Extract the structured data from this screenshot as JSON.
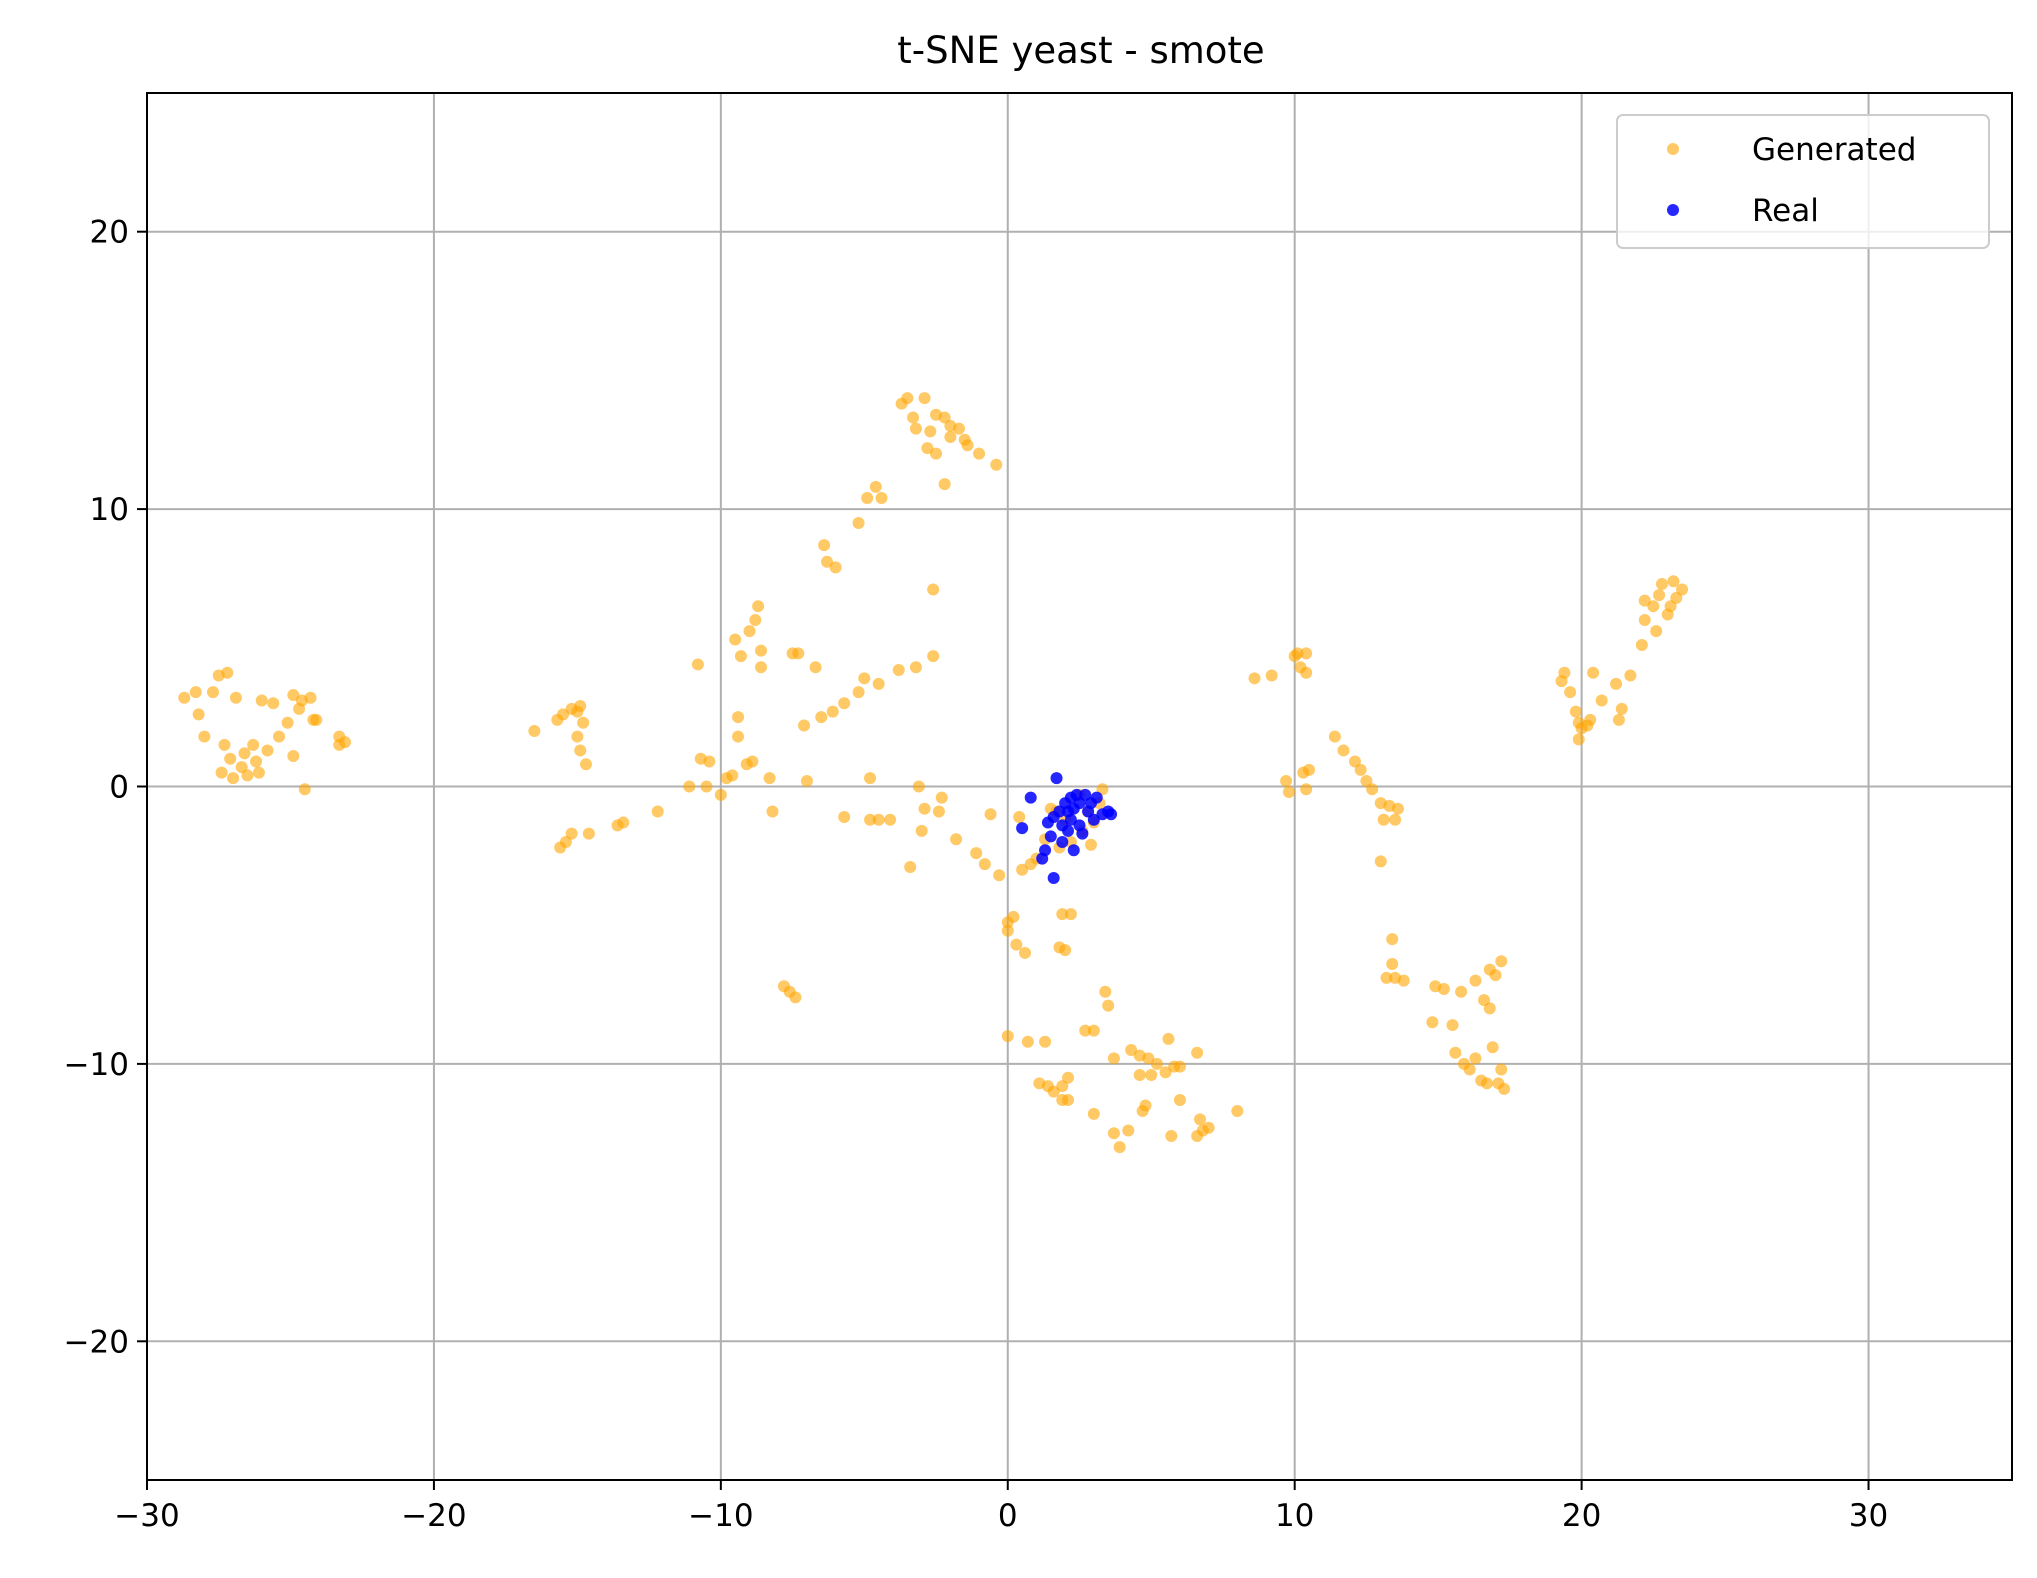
{
  "chart_data": {
    "type": "scatter",
    "title": "t-SNE yeast - smote",
    "xlabel": "",
    "ylabel": "",
    "xlim": [
      -30,
      35
    ],
    "ylim": [
      -25,
      25
    ],
    "xticks": [
      -30,
      -20,
      -10,
      0,
      10,
      20,
      30
    ],
    "yticks": [
      -20,
      -10,
      0,
      10,
      20
    ],
    "xtick_labels": [
      "−30",
      "−20",
      "−10",
      "0",
      "10",
      "20",
      "30"
    ],
    "ytick_labels": [
      "−20",
      "−10",
      "0",
      "10",
      "20"
    ],
    "grid": true,
    "legend_position": "top-right",
    "series": [
      {
        "name": "Generated",
        "color": "#FFA500",
        "alpha": 0.6,
        "points": [
          [
            -28.7,
            3.2
          ],
          [
            -28.3,
            3.4
          ],
          [
            -28.2,
            2.6
          ],
          [
            -28.0,
            1.8
          ],
          [
            -27.7,
            3.4
          ],
          [
            -27.5,
            4.0
          ],
          [
            -27.4,
            0.5
          ],
          [
            -27.3,
            1.5
          ],
          [
            -27.2,
            4.1
          ],
          [
            -27.1,
            1.0
          ],
          [
            -27.0,
            0.3
          ],
          [
            -26.9,
            3.2
          ],
          [
            -26.7,
            0.7
          ],
          [
            -26.6,
            1.2
          ],
          [
            -26.5,
            0.4
          ],
          [
            -26.3,
            1.5
          ],
          [
            -26.2,
            0.9
          ],
          [
            -26.1,
            0.5
          ],
          [
            -26.0,
            3.1
          ],
          [
            -25.8,
            1.3
          ],
          [
            -25.6,
            3.0
          ],
          [
            -25.4,
            1.8
          ],
          [
            -25.1,
            2.3
          ],
          [
            -24.9,
            1.1
          ],
          [
            -24.9,
            3.3
          ],
          [
            -24.7,
            2.8
          ],
          [
            -24.6,
            3.1
          ],
          [
            -24.5,
            -0.1
          ],
          [
            -24.3,
            3.2
          ],
          [
            -24.2,
            2.4
          ],
          [
            -24.1,
            2.4
          ],
          [
            -23.3,
            1.8
          ],
          [
            -23.3,
            1.5
          ],
          [
            -23.1,
            1.6
          ],
          [
            -16.5,
            2.0
          ],
          [
            -15.7,
            2.4
          ],
          [
            -15.6,
            -2.2
          ],
          [
            -15.5,
            2.6
          ],
          [
            -15.4,
            -2.0
          ],
          [
            -15.2,
            2.8
          ],
          [
            -15.2,
            -1.7
          ],
          [
            -15.0,
            2.7
          ],
          [
            -15.0,
            1.8
          ],
          [
            -14.9,
            2.9
          ],
          [
            -14.9,
            1.3
          ],
          [
            -14.8,
            2.3
          ],
          [
            -14.7,
            0.8
          ],
          [
            -14.6,
            -1.7
          ],
          [
            -13.6,
            -1.4
          ],
          [
            -13.4,
            -1.3
          ],
          [
            -12.2,
            -0.9
          ],
          [
            -11.1,
            0.0
          ],
          [
            -10.8,
            4.4
          ],
          [
            -10.7,
            1.0
          ],
          [
            -10.5,
            0.0
          ],
          [
            -10.4,
            0.9
          ],
          [
            -10.0,
            -0.3
          ],
          [
            -9.8,
            0.3
          ],
          [
            -9.6,
            0.4
          ],
          [
            -9.5,
            5.3
          ],
          [
            -9.4,
            2.5
          ],
          [
            -9.4,
            1.8
          ],
          [
            -9.3,
            4.7
          ],
          [
            -9.1,
            0.8
          ],
          [
            -9.0,
            5.6
          ],
          [
            -8.9,
            0.9
          ],
          [
            -8.8,
            6.0
          ],
          [
            -8.7,
            6.5
          ],
          [
            -8.6,
            4.9
          ],
          [
            -8.6,
            4.3
          ],
          [
            -8.3,
            0.3
          ],
          [
            -8.2,
            -0.9
          ],
          [
            -7.8,
            -7.2
          ],
          [
            -7.6,
            -7.4
          ],
          [
            -7.5,
            4.8
          ],
          [
            -7.4,
            -7.6
          ],
          [
            -7.3,
            4.8
          ],
          [
            -7.1,
            2.2
          ],
          [
            -7.0,
            0.2
          ],
          [
            -6.7,
            4.3
          ],
          [
            -6.5,
            2.5
          ],
          [
            -6.4,
            8.7
          ],
          [
            -6.3,
            8.1
          ],
          [
            -6.1,
            2.7
          ],
          [
            -6.0,
            7.9
          ],
          [
            -5.7,
            3.0
          ],
          [
            -5.7,
            -1.1
          ],
          [
            -5.2,
            9.5
          ],
          [
            -5.2,
            3.4
          ],
          [
            -5.0,
            3.9
          ],
          [
            -4.9,
            10.4
          ],
          [
            -4.8,
            0.3
          ],
          [
            -4.8,
            -1.2
          ],
          [
            -4.6,
            10.8
          ],
          [
            -4.5,
            3.7
          ],
          [
            -4.5,
            -1.2
          ],
          [
            -4.4,
            10.4
          ],
          [
            -4.1,
            -1.2
          ],
          [
            -3.8,
            4.2
          ],
          [
            -3.7,
            13.8
          ],
          [
            -3.5,
            14.0
          ],
          [
            -3.4,
            -2.9
          ],
          [
            -3.3,
            13.3
          ],
          [
            -3.2,
            4.3
          ],
          [
            -3.2,
            12.9
          ],
          [
            -3.1,
            0.0
          ],
          [
            -3.0,
            -1.6
          ],
          [
            -2.9,
            14.0
          ],
          [
            -2.9,
            -0.8
          ],
          [
            -2.8,
            12.2
          ],
          [
            -2.7,
            12.8
          ],
          [
            -2.6,
            7.1
          ],
          [
            -2.6,
            4.7
          ],
          [
            -2.5,
            13.4
          ],
          [
            -2.5,
            12.0
          ],
          [
            -2.4,
            -0.9
          ],
          [
            -2.3,
            -0.4
          ],
          [
            -2.2,
            13.3
          ],
          [
            -2.2,
            10.9
          ],
          [
            -2.0,
            13.0
          ],
          [
            -2.0,
            12.6
          ],
          [
            -1.8,
            -1.9
          ],
          [
            -1.7,
            12.9
          ],
          [
            -1.5,
            12.5
          ],
          [
            -1.4,
            12.3
          ],
          [
            -1.1,
            -2.4
          ],
          [
            -1.0,
            12.0
          ],
          [
            -0.8,
            -2.8
          ],
          [
            -0.6,
            -1.0
          ],
          [
            -0.4,
            11.6
          ],
          [
            -0.3,
            -3.2
          ],
          [
            0.0,
            -4.9
          ],
          [
            0.0,
            -5.2
          ],
          [
            0.0,
            -9.0
          ],
          [
            0.2,
            -4.7
          ],
          [
            0.3,
            -5.7
          ],
          [
            0.4,
            -1.1
          ],
          [
            0.5,
            -3.0
          ],
          [
            0.6,
            -6.0
          ],
          [
            0.7,
            -9.2
          ],
          [
            0.8,
            -2.8
          ],
          [
            1.0,
            -2.6
          ],
          [
            1.1,
            -10.7
          ],
          [
            1.3,
            -1.9
          ],
          [
            1.3,
            -9.2
          ],
          [
            1.4,
            -10.8
          ],
          [
            1.5,
            -0.8
          ],
          [
            1.6,
            -11.0
          ],
          [
            1.7,
            -0.9
          ],
          [
            1.8,
            -2.2
          ],
          [
            1.8,
            -5.8
          ],
          [
            1.9,
            -4.6
          ],
          [
            1.9,
            -10.8
          ],
          [
            1.9,
            -11.3
          ],
          [
            2.0,
            -5.9
          ],
          [
            2.0,
            -1.2
          ],
          [
            2.1,
            -10.5
          ],
          [
            2.1,
            -11.3
          ],
          [
            2.2,
            -4.6
          ],
          [
            2.2,
            -2.0
          ],
          [
            2.5,
            -0.3
          ],
          [
            2.6,
            -1.6
          ],
          [
            2.7,
            -8.8
          ],
          [
            2.8,
            -0.9
          ],
          [
            2.9,
            -2.1
          ],
          [
            3.0,
            -1.3
          ],
          [
            3.0,
            -8.8
          ],
          [
            3.0,
            -11.8
          ],
          [
            3.2,
            -0.6
          ],
          [
            3.3,
            -0.1
          ],
          [
            3.4,
            -7.4
          ],
          [
            3.5,
            -7.9
          ],
          [
            3.7,
            -9.8
          ],
          [
            3.7,
            -12.5
          ],
          [
            3.9,
            -13.0
          ],
          [
            4.2,
            -12.4
          ],
          [
            4.3,
            -9.5
          ],
          [
            4.6,
            -9.7
          ],
          [
            4.6,
            -10.4
          ],
          [
            4.7,
            -11.7
          ],
          [
            4.8,
            -11.5
          ],
          [
            4.9,
            -9.8
          ],
          [
            5.0,
            -10.4
          ],
          [
            5.2,
            -10.0
          ],
          [
            5.5,
            -10.3
          ],
          [
            5.6,
            -9.1
          ],
          [
            5.7,
            -12.6
          ],
          [
            5.8,
            -10.1
          ],
          [
            6.0,
            -10.1
          ],
          [
            6.0,
            -11.3
          ],
          [
            6.6,
            -9.6
          ],
          [
            6.6,
            -12.6
          ],
          [
            6.7,
            -12.0
          ],
          [
            6.8,
            -12.4
          ],
          [
            7.0,
            -12.3
          ],
          [
            8.0,
            -11.7
          ],
          [
            8.6,
            3.9
          ],
          [
            9.2,
            4.0
          ],
          [
            9.7,
            0.2
          ],
          [
            9.8,
            -0.2
          ],
          [
            10.0,
            4.7
          ],
          [
            10.1,
            4.8
          ],
          [
            10.2,
            4.3
          ],
          [
            10.3,
            0.5
          ],
          [
            10.4,
            -0.1
          ],
          [
            10.4,
            4.8
          ],
          [
            10.4,
            4.1
          ],
          [
            10.5,
            0.6
          ],
          [
            11.4,
            1.8
          ],
          [
            11.7,
            1.3
          ],
          [
            12.1,
            0.9
          ],
          [
            12.3,
            0.6
          ],
          [
            12.5,
            0.2
          ],
          [
            12.7,
            -0.1
          ],
          [
            13.0,
            -2.7
          ],
          [
            13.0,
            -0.6
          ],
          [
            13.1,
            -1.2
          ],
          [
            13.2,
            -6.9
          ],
          [
            13.3,
            -0.7
          ],
          [
            13.4,
            -5.5
          ],
          [
            13.4,
            -6.4
          ],
          [
            13.5,
            -6.9
          ],
          [
            13.5,
            -1.2
          ],
          [
            13.6,
            -0.8
          ],
          [
            13.8,
            -7.0
          ],
          [
            14.8,
            -8.5
          ],
          [
            14.9,
            -7.2
          ],
          [
            15.2,
            -7.3
          ],
          [
            15.5,
            -8.6
          ],
          [
            15.6,
            -9.6
          ],
          [
            15.8,
            -7.4
          ],
          [
            15.9,
            -10.0
          ],
          [
            16.1,
            -10.2
          ],
          [
            16.3,
            -7.0
          ],
          [
            16.3,
            -9.8
          ],
          [
            16.5,
            -10.6
          ],
          [
            16.6,
            -7.7
          ],
          [
            16.7,
            -10.7
          ],
          [
            16.8,
            -6.6
          ],
          [
            16.8,
            -8.0
          ],
          [
            16.9,
            -9.4
          ],
          [
            17.0,
            -6.8
          ],
          [
            17.1,
            -10.7
          ],
          [
            17.2,
            -10.2
          ],
          [
            17.2,
            -6.3
          ],
          [
            17.3,
            -10.9
          ],
          [
            19.3,
            3.8
          ],
          [
            19.4,
            4.1
          ],
          [
            19.6,
            3.4
          ],
          [
            19.8,
            2.7
          ],
          [
            19.9,
            2.3
          ],
          [
            19.9,
            1.7
          ],
          [
            20.0,
            2.1
          ],
          [
            20.2,
            2.2
          ],
          [
            20.3,
            2.4
          ],
          [
            20.4,
            4.1
          ],
          [
            20.7,
            3.1
          ],
          [
            21.2,
            3.7
          ],
          [
            21.3,
            2.4
          ],
          [
            21.4,
            2.8
          ],
          [
            21.7,
            4.0
          ],
          [
            22.1,
            5.1
          ],
          [
            22.2,
            6.7
          ],
          [
            22.2,
            6.0
          ],
          [
            22.5,
            6.5
          ],
          [
            22.6,
            5.6
          ],
          [
            22.7,
            6.9
          ],
          [
            22.8,
            7.3
          ],
          [
            23.0,
            6.2
          ],
          [
            23.1,
            6.5
          ],
          [
            23.2,
            7.4
          ],
          [
            23.3,
            6.8
          ],
          [
            23.5,
            7.1
          ]
        ]
      },
      {
        "name": "Real",
        "color": "#0000FF",
        "alpha": 0.85,
        "points": [
          [
            0.5,
            -1.5
          ],
          [
            0.8,
            -0.4
          ],
          [
            1.2,
            -2.6
          ],
          [
            1.3,
            -2.3
          ],
          [
            1.4,
            -1.3
          ],
          [
            1.5,
            -1.8
          ],
          [
            1.6,
            -3.3
          ],
          [
            1.6,
            -1.1
          ],
          [
            1.7,
            0.3
          ],
          [
            1.8,
            -0.9
          ],
          [
            1.9,
            -2.0
          ],
          [
            1.9,
            -1.4
          ],
          [
            2.0,
            -0.6
          ],
          [
            2.1,
            -1.6
          ],
          [
            2.1,
            -0.9
          ],
          [
            2.2,
            -0.4
          ],
          [
            2.2,
            -1.2
          ],
          [
            2.3,
            -2.3
          ],
          [
            2.3,
            -0.8
          ],
          [
            2.4,
            -0.3
          ],
          [
            2.5,
            -1.4
          ],
          [
            2.5,
            -0.6
          ],
          [
            2.6,
            -1.7
          ],
          [
            2.7,
            -0.3
          ],
          [
            2.8,
            -0.9
          ],
          [
            2.9,
            -0.6
          ],
          [
            3.0,
            -1.2
          ],
          [
            3.1,
            -0.4
          ],
          [
            3.3,
            -1.0
          ],
          [
            3.5,
            -0.9
          ],
          [
            3.6,
            -1.0
          ]
        ]
      }
    ]
  }
}
